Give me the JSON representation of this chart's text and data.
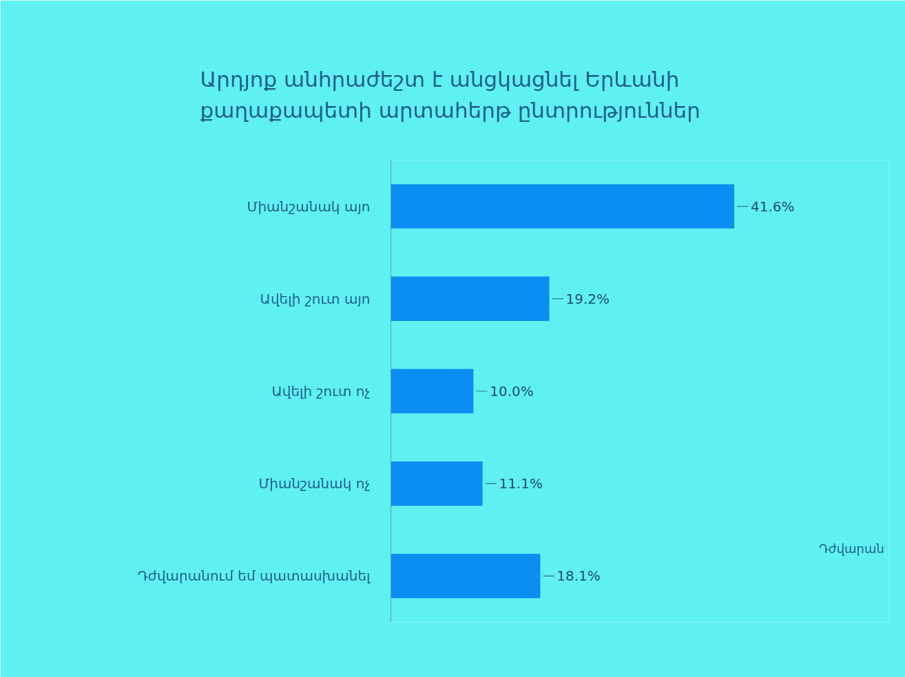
{
  "chart_data": {
    "type": "bar",
    "orientation": "horizontal",
    "title": "Արդյոք անհրաժեշտ է անցկացնել Երևանի քաղաքապետի արտահերթ ընտրություններ",
    "categories": [
      "Միանշանակ այո",
      "Ավելի շուտ այո",
      "Ավելի շուտ ոչ",
      "Միանշանակ ոչ",
      "Դժվարանում եմ պատասխանել"
    ],
    "values": [
      41.6,
      19.2,
      10.0,
      11.1,
      18.1
    ],
    "value_labels": [
      "41.6%",
      "19.2%",
      "10.0%",
      "11.1%",
      "18.1%"
    ],
    "color": "#0b8ef2",
    "tick_labels": "y",
    "annotations": [
      "Դժվարան"
    ]
  }
}
